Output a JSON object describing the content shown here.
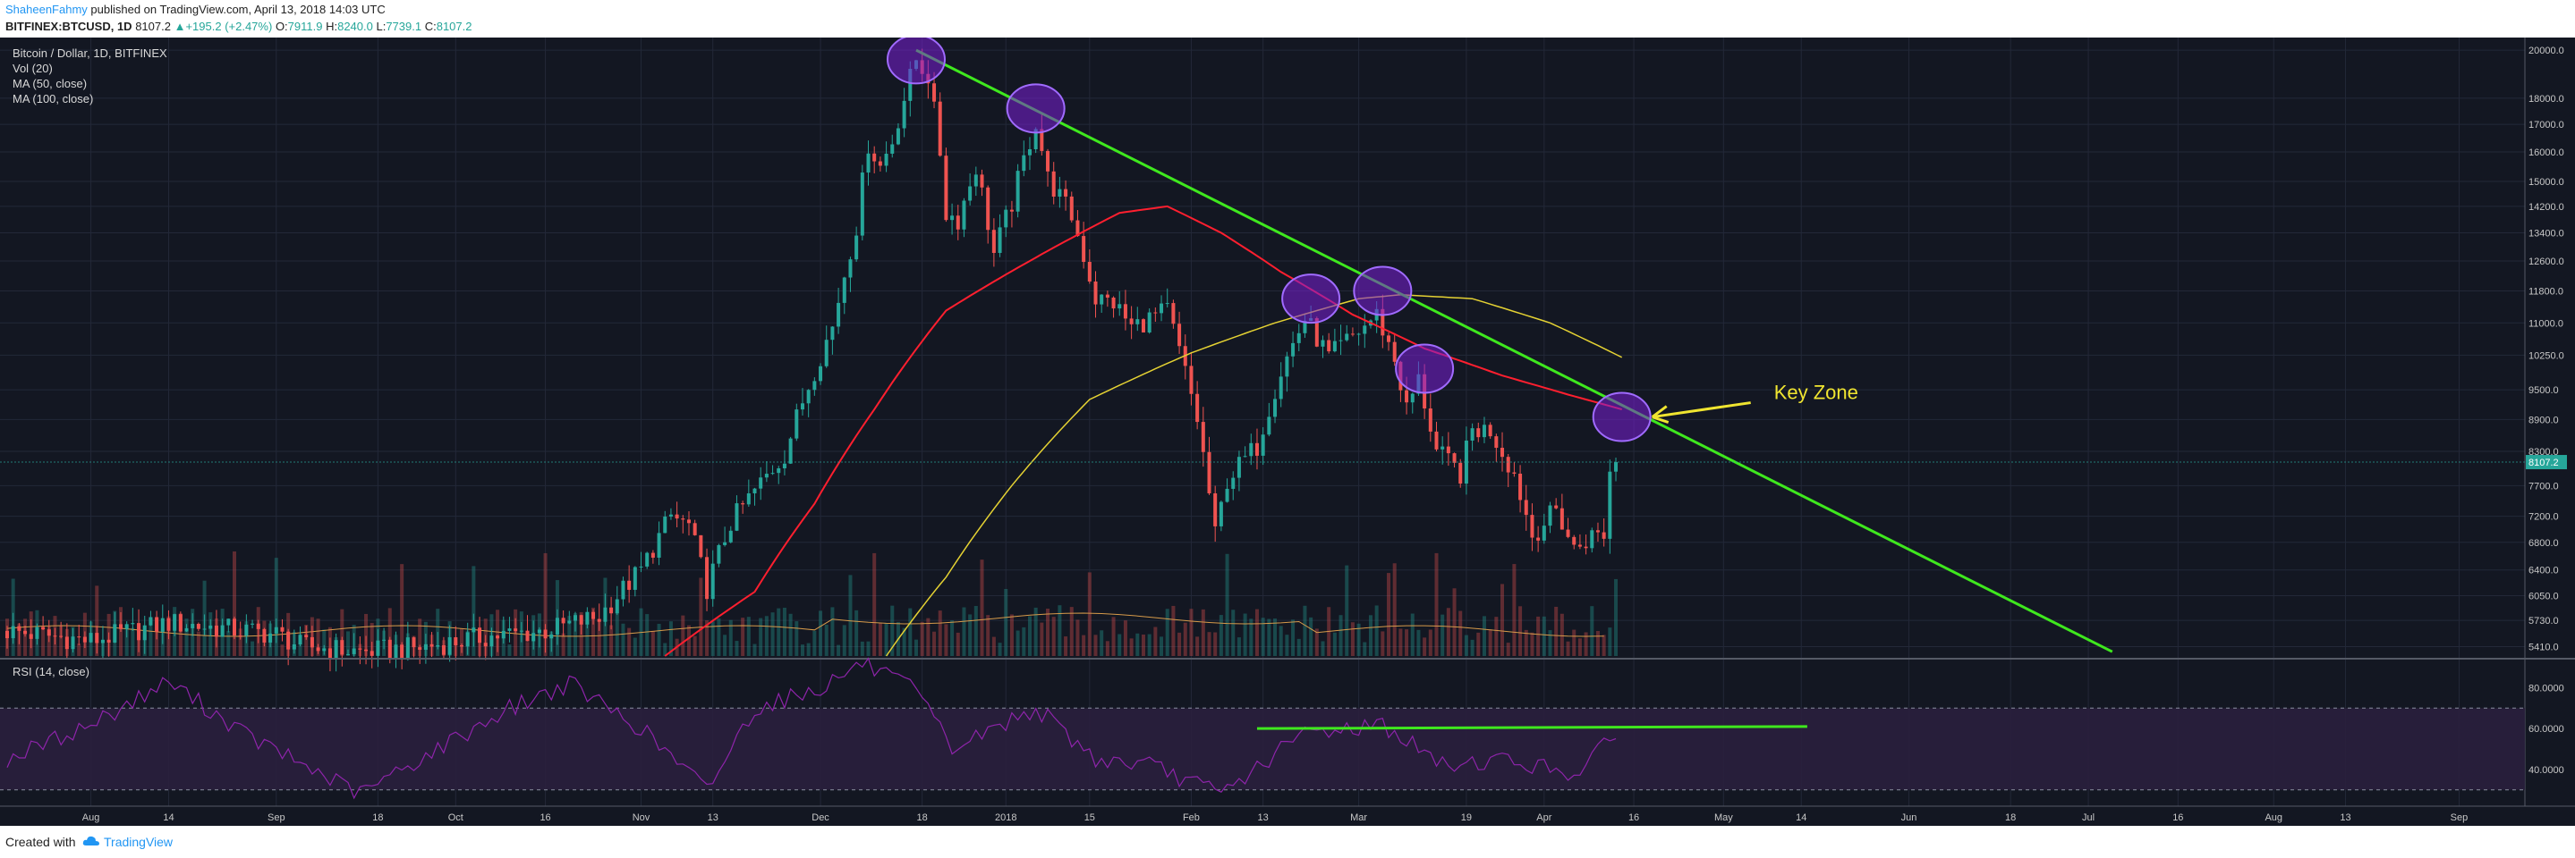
{
  "header": {
    "author": "ShaheenFahmy",
    "published": "published on TradingView.com, April 13, 2018 14:03 UTC",
    "symbol": "BITFINEX:BTCUSD, 1D",
    "last": "8107.2",
    "change": "+195.2 (+2.47%)",
    "o_label": "O:",
    "o": "7911.9",
    "h_label": "H:",
    "h": "8240.0",
    "l_label": "L:",
    "l": "7739.1",
    "c_label": "C:",
    "c": "8107.2"
  },
  "footer": {
    "created": "Created with",
    "brand": "TradingView"
  },
  "colors": {
    "bg": "#131722",
    "grid": "#232838",
    "up": "#26a69a",
    "down": "#ef5350",
    "ma50": "#ff1f2f",
    "ma100": "#e5d233",
    "trendline": "#3fe81e",
    "ellipse_fill": "#7a1fd6",
    "ellipse_stroke": "#a06bff",
    "annotation": "#f0e530",
    "rsi_line": "#8e24aa",
    "rsi_band": "#2a1f3d",
    "text": "#c8c8c8",
    "last_tag": "#26a69a"
  },
  "chart_data": {
    "type": "candlestick",
    "title": "Bitcoin / Dollar, 1D, BITFINEX",
    "indicators": [
      "Vol (20)",
      "MA (50, close)",
      "MA (100, close)"
    ],
    "price_scale": "log",
    "ylim": [
      5300,
      20400
    ],
    "price_ticks": [
      "20000.0",
      "18000.0",
      "17000.0",
      "16000.0",
      "15000.0",
      "14200.0",
      "13400.0",
      "12600.0",
      "11800.0",
      "11000.0",
      "10250.0",
      "9500.0",
      "8900.0",
      "8300.0",
      "7700.0",
      "7200.0",
      "6800.0",
      "6400.0",
      "6050.0",
      "5730.0",
      "5410.0"
    ],
    "last_price_tag": "8107.2",
    "x_range": [
      "2017-07-18",
      "2018-09-12"
    ],
    "time_labels": [
      {
        "text": "Aug",
        "date": "2017-08-01"
      },
      {
        "text": "14",
        "date": "2017-08-14"
      },
      {
        "text": "Sep",
        "date": "2017-09-01"
      },
      {
        "text": "18",
        "date": "2017-09-18"
      },
      {
        "text": "Oct",
        "date": "2017-10-01"
      },
      {
        "text": "16",
        "date": "2017-10-16"
      },
      {
        "text": "Nov",
        "date": "2017-11-01"
      },
      {
        "text": "13",
        "date": "2017-11-13"
      },
      {
        "text": "Dec",
        "date": "2017-12-01"
      },
      {
        "text": "18",
        "date": "2017-12-18"
      },
      {
        "text": "2018",
        "date": "2018-01-01"
      },
      {
        "text": "15",
        "date": "2018-01-15"
      },
      {
        "text": "Feb",
        "date": "2018-02-01"
      },
      {
        "text": "13",
        "date": "2018-02-13"
      },
      {
        "text": "Mar",
        "date": "2018-03-01"
      },
      {
        "text": "19",
        "date": "2018-03-19"
      },
      {
        "text": "Apr",
        "date": "2018-04-01"
      },
      {
        "text": "16",
        "date": "2018-04-16"
      },
      {
        "text": "May",
        "date": "2018-05-01"
      },
      {
        "text": "14",
        "date": "2018-05-14"
      },
      {
        "text": "Jun",
        "date": "2018-06-01"
      },
      {
        "text": "18",
        "date": "2018-06-18"
      },
      {
        "text": "Jul",
        "date": "2018-07-01"
      },
      {
        "text": "16",
        "date": "2018-07-16"
      },
      {
        "text": "Aug",
        "date": "2018-08-01"
      },
      {
        "text": "13",
        "date": "2018-08-13"
      },
      {
        "text": "Sep",
        "date": "2018-09-01"
      }
    ],
    "price_anchors": [
      [
        "2017-07-18",
        5600
      ],
      [
        "2017-08-01",
        5480
      ],
      [
        "2017-08-14",
        5700
      ],
      [
        "2017-09-01",
        5560
      ],
      [
        "2017-09-05",
        5420
      ],
      [
        "2017-09-15",
        5350
      ],
      [
        "2017-09-25",
        5400
      ],
      [
        "2017-10-05",
        5520
      ],
      [
        "2017-10-16",
        5600
      ],
      [
        "2017-10-25",
        5780
      ],
      [
        "2017-11-01",
        6400
      ],
      [
        "2017-11-06",
        7200
      ],
      [
        "2017-11-09",
        7050
      ],
      [
        "2017-11-12",
        6150
      ],
      [
        "2017-11-16",
        7100
      ],
      [
        "2017-11-25",
        8250
      ],
      [
        "2017-11-29",
        9600
      ],
      [
        "2017-12-03",
        10900
      ],
      [
        "2017-12-07",
        13600
      ],
      [
        "2017-12-09",
        16300
      ],
      [
        "2017-12-11",
        15500
      ],
      [
        "2017-12-13",
        16400
      ],
      [
        "2017-12-17",
        19600
      ],
      [
        "2017-12-19",
        18900
      ],
      [
        "2017-12-21",
        16000
      ],
      [
        "2017-12-22",
        14000
      ],
      [
        "2017-12-24",
        13800
      ],
      [
        "2017-12-27",
        15500
      ],
      [
        "2017-12-30",
        12800
      ],
      [
        "2018-01-02",
        14300
      ],
      [
        "2018-01-06",
        17100
      ],
      [
        "2018-01-08",
        15100
      ],
      [
        "2018-01-12",
        13900
      ],
      [
        "2018-01-16",
        11600
      ],
      [
        "2018-01-19",
        11500
      ],
      [
        "2018-01-22",
        10900
      ],
      [
        "2018-01-28",
        11300
      ],
      [
        "2018-02-02",
        8900
      ],
      [
        "2018-02-05",
        6900
      ],
      [
        "2018-02-07",
        7800
      ],
      [
        "2018-02-12",
        8400
      ],
      [
        "2018-02-16",
        9900
      ],
      [
        "2018-02-20",
        11100
      ],
      [
        "2018-02-24",
        10200
      ],
      [
        "2018-03-01",
        10800
      ],
      [
        "2018-03-04",
        11200
      ],
      [
        "2018-03-07",
        10150
      ],
      [
        "2018-03-09",
        9100
      ],
      [
        "2018-03-11",
        9700
      ],
      [
        "2018-03-14",
        8300
      ],
      [
        "2018-03-18",
        7900
      ],
      [
        "2018-03-20",
        8700
      ],
      [
        "2018-03-23",
        8700
      ],
      [
        "2018-03-27",
        7900
      ],
      [
        "2018-03-30",
        6900
      ],
      [
        "2018-04-03",
        7300
      ],
      [
        "2018-04-06",
        6700
      ],
      [
        "2018-04-09",
        6900
      ],
      [
        "2018-04-11",
        6930
      ],
      [
        "2018-04-12",
        7930
      ],
      [
        "2018-04-13",
        8107.2
      ]
    ],
    "moving_averages": [
      {
        "name": "MA (50, close)",
        "points": [
          [
            "2017-11-05",
            5300
          ],
          [
            "2017-11-20",
            6100
          ],
          [
            "2017-11-30",
            7400
          ],
          [
            "2017-12-10",
            9100
          ],
          [
            "2017-12-22",
            11300
          ],
          [
            "2018-01-05",
            12600
          ],
          [
            "2018-01-20",
            14000
          ],
          [
            "2018-01-28",
            14200
          ],
          [
            "2018-02-06",
            13400
          ],
          [
            "2018-02-16",
            12300
          ],
          [
            "2018-02-28",
            11200
          ],
          [
            "2018-03-12",
            10400
          ],
          [
            "2018-03-25",
            9800
          ],
          [
            "2018-04-05",
            9400
          ],
          [
            "2018-04-14",
            9100
          ]
        ]
      },
      {
        "name": "MA (100, close)",
        "points": [
          [
            "2017-12-12",
            5300
          ],
          [
            "2017-12-22",
            6300
          ],
          [
            "2018-01-02",
            7700
          ],
          [
            "2018-01-15",
            9300
          ],
          [
            "2018-02-01",
            10300
          ],
          [
            "2018-02-15",
            11000
          ],
          [
            "2018-03-01",
            11600
          ],
          [
            "2018-03-08",
            11700
          ],
          [
            "2018-03-20",
            11600
          ],
          [
            "2018-04-02",
            11000
          ],
          [
            "2018-04-14",
            10200
          ]
        ]
      }
    ],
    "volume_avg_level": 0.32,
    "trendline": {
      "from": [
        "2017-12-17",
        20000
      ],
      "to": [
        "2018-07-05",
        5350
      ]
    },
    "highlighted_touches": [
      [
        "2017-12-17",
        19600
      ],
      [
        "2018-01-06",
        17600
      ],
      [
        "2018-02-21",
        11600
      ],
      [
        "2018-03-05",
        11800
      ],
      [
        "2018-03-12",
        9950
      ],
      [
        "2018-04-14",
        8950
      ]
    ],
    "annotation": {
      "text": "Key Zone",
      "points_to": [
        "2018-04-14",
        8950
      ]
    },
    "rsi": {
      "label": "RSI (14, close)",
      "ylim": [
        22,
        92
      ],
      "band": [
        30,
        70
      ],
      "ticks": [
        "80.0000",
        "60.0000",
        "40.0000"
      ],
      "anchors": [
        [
          "2017-07-18",
          45
        ],
        [
          "2017-08-01",
          62
        ],
        [
          "2017-08-14",
          83
        ],
        [
          "2017-08-28",
          55
        ],
        [
          "2017-09-15",
          28
        ],
        [
          "2017-09-25",
          45
        ],
        [
          "2017-10-10",
          70
        ],
        [
          "2017-10-20",
          82
        ],
        [
          "2017-11-01",
          60
        ],
        [
          "2017-11-12",
          30
        ],
        [
          "2017-11-20",
          70
        ],
        [
          "2017-12-01",
          80
        ],
        [
          "2017-12-08",
          92
        ],
        [
          "2017-12-17",
          78
        ],
        [
          "2017-12-23",
          50
        ],
        [
          "2018-01-06",
          70
        ],
        [
          "2018-01-16",
          45
        ],
        [
          "2018-01-25",
          42
        ],
        [
          "2018-02-06",
          28
        ],
        [
          "2018-02-20",
          58
        ],
        [
          "2018-03-05",
          62
        ],
        [
          "2018-03-15",
          42
        ],
        [
          "2018-03-25",
          45
        ],
        [
          "2018-04-06",
          38
        ],
        [
          "2018-04-13",
          56
        ]
      ],
      "trendline": {
        "from": [
          "2018-02-12",
          60
        ],
        "to": [
          "2018-05-15",
          61
        ]
      }
    }
  }
}
